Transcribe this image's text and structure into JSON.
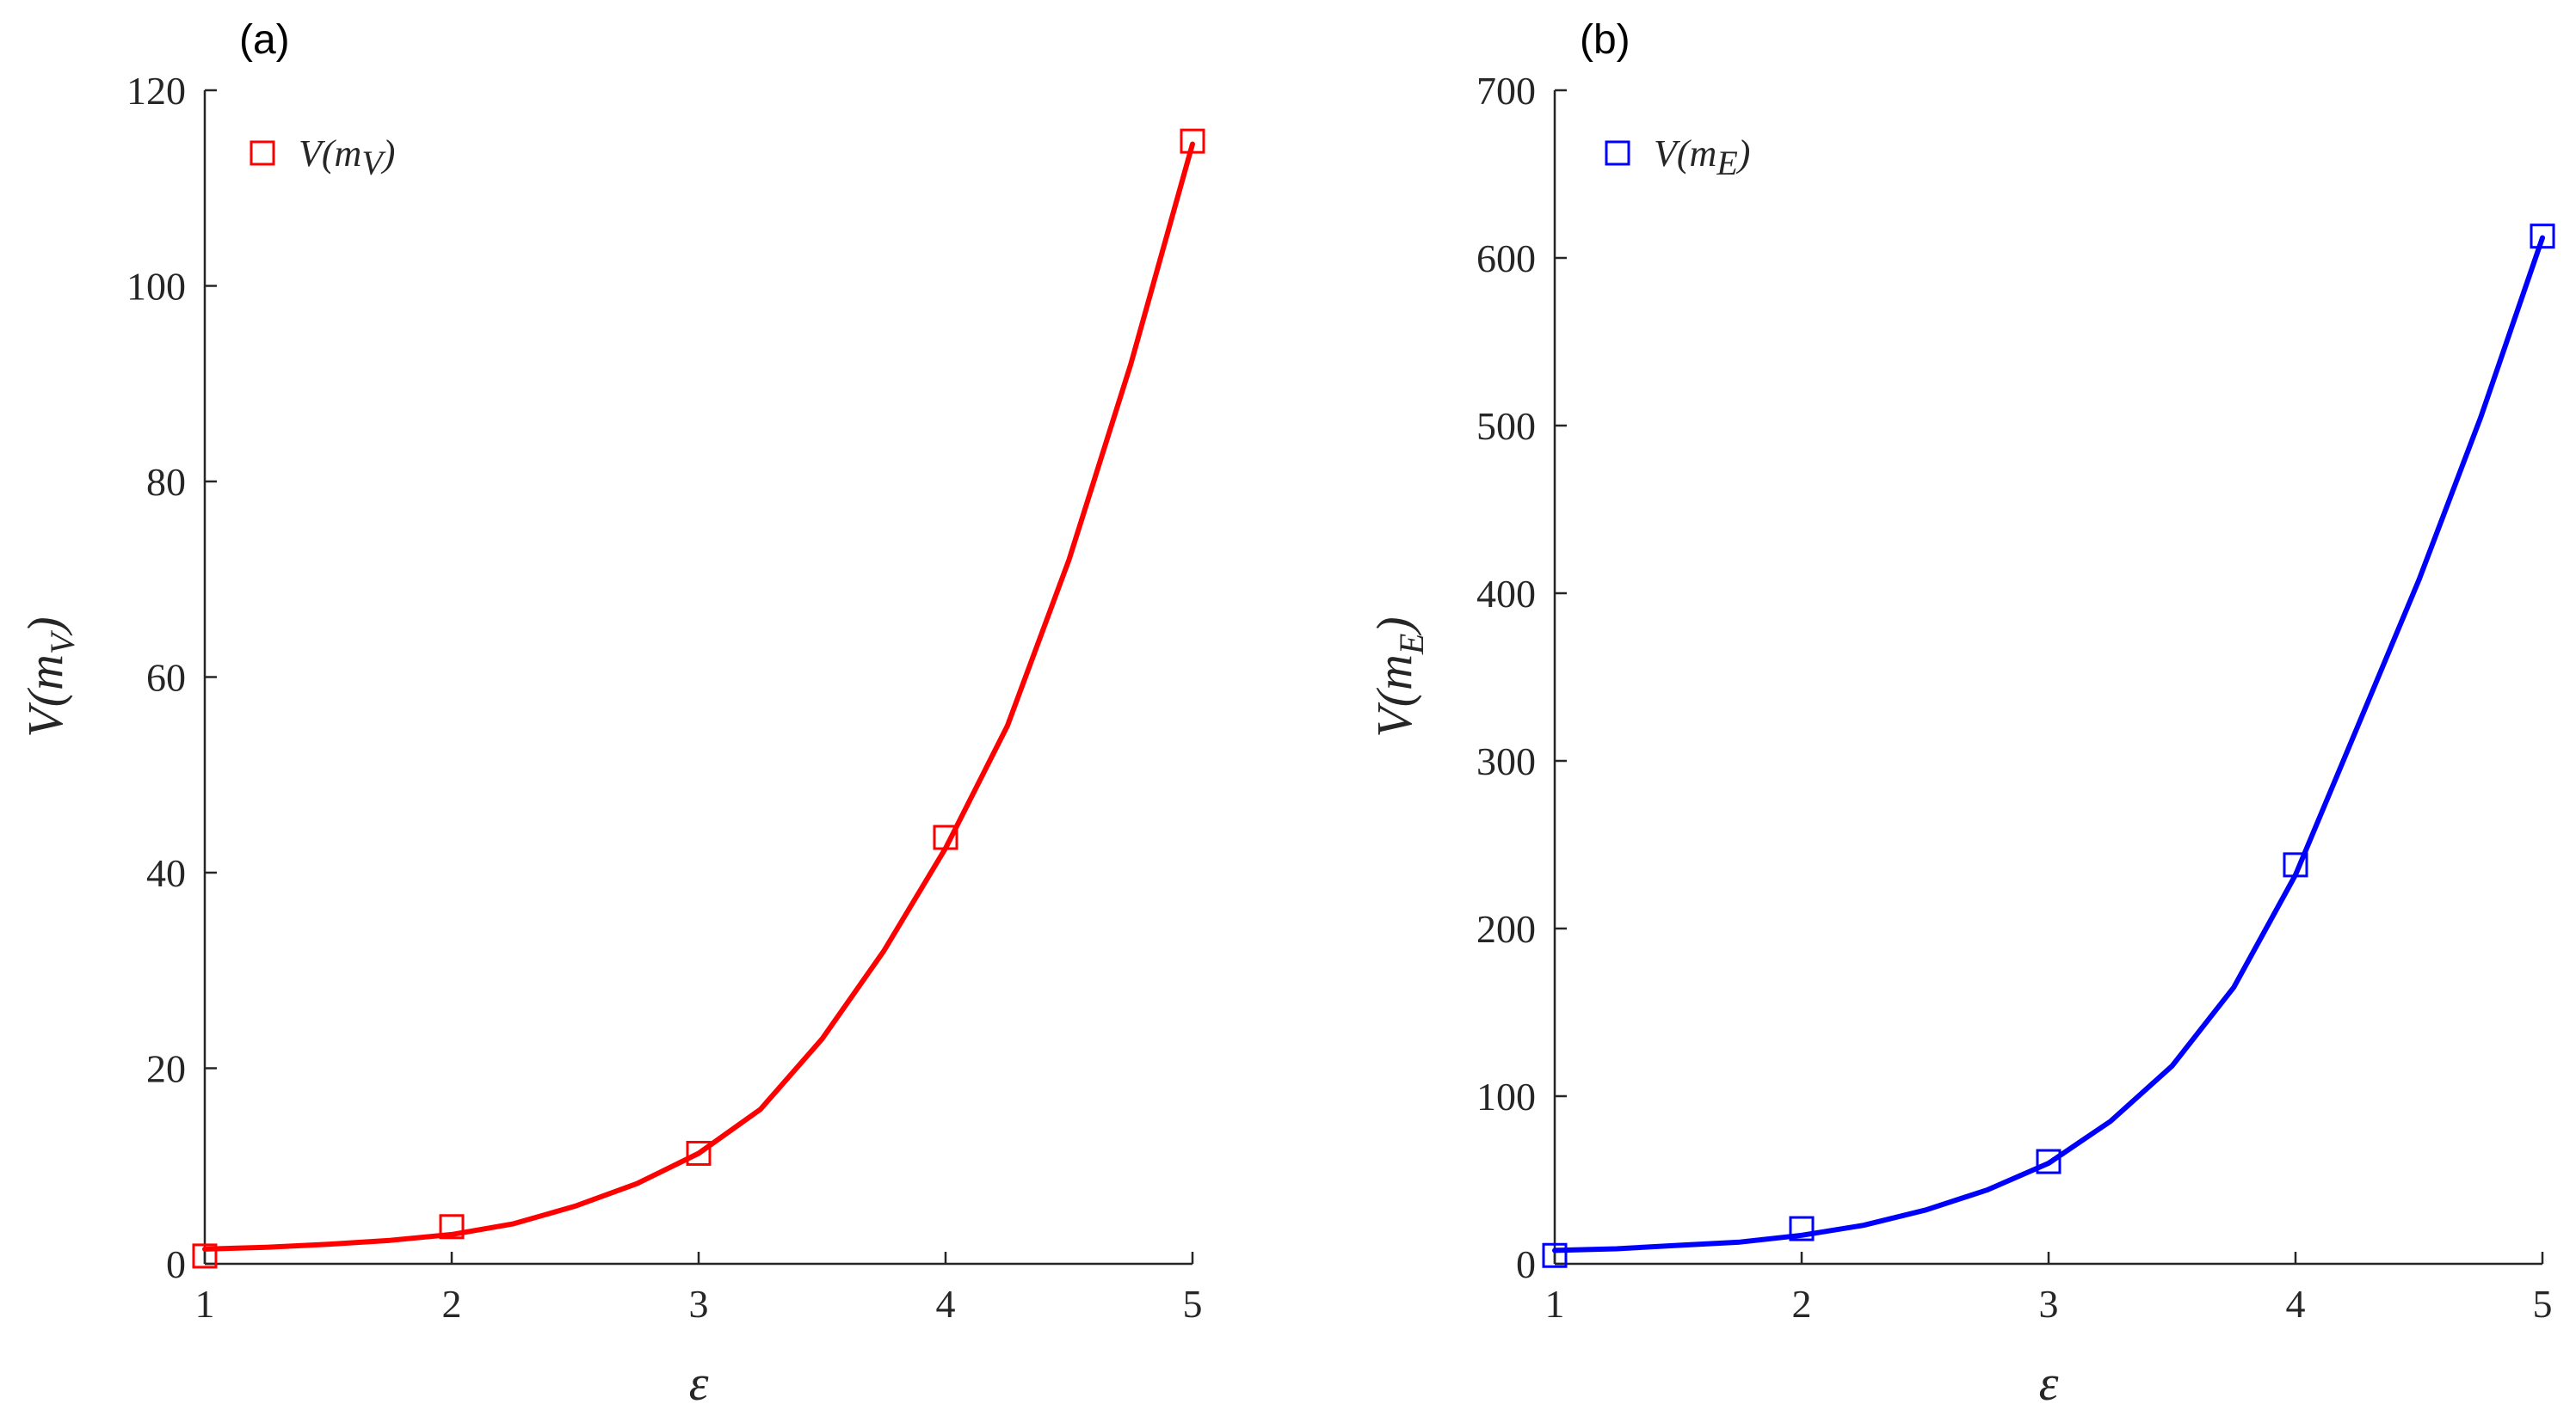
{
  "chart_data": [
    {
      "type": "scatter",
      "panel_label": "(a)",
      "xlabel": "ε",
      "ylabel": {
        "main": "V(m",
        "sub": "V",
        "close": ")"
      },
      "legend": {
        "main": "V(m",
        "sub": "V",
        "close": ")",
        "position": "top-left"
      },
      "xlim": [
        1,
        5
      ],
      "ylim": [
        0,
        120
      ],
      "xticks": [
        1,
        2,
        3,
        4,
        5
      ],
      "yticks": [
        0,
        20,
        40,
        60,
        80,
        100,
        120
      ],
      "color": "#ff0000",
      "points": {
        "x": [
          1,
          2,
          3,
          4,
          5
        ],
        "y": [
          0.8,
          3.8,
          11.3,
          43.6,
          114.8
        ]
      },
      "fit_curve": {
        "description_shown": "smooth fitted line",
        "x": [
          1.0,
          1.25,
          1.5,
          1.75,
          2.0,
          2.25,
          2.5,
          2.75,
          3.0,
          3.25,
          3.5,
          3.75,
          4.0,
          4.25,
          4.5,
          4.75,
          5.0
        ],
        "y": [
          1.5,
          1.7,
          2.0,
          2.4,
          3.0,
          4.1,
          5.9,
          8.2,
          11.3,
          15.8,
          23.0,
          32.0,
          42.5,
          55.0,
          72.0,
          92.0,
          114.5
        ]
      },
      "grid": false
    },
    {
      "type": "scatter",
      "panel_label": "(b)",
      "xlabel": "ε",
      "ylabel": {
        "main": "V(m",
        "sub": "E",
        "close": ")"
      },
      "legend": {
        "main": "V(m",
        "sub": "E",
        "close": ")",
        "position": "top-left"
      },
      "xlim": [
        1,
        5
      ],
      "ylim": [
        0,
        700
      ],
      "xticks": [
        1,
        2,
        3,
        4,
        5
      ],
      "yticks": [
        0,
        100,
        200,
        300,
        400,
        500,
        600,
        700
      ],
      "color": "#0000ff",
      "points": {
        "x": [
          1,
          2,
          3,
          4,
          5
        ],
        "y": [
          5,
          21,
          61,
          238,
          613
        ]
      },
      "fit_curve": {
        "description_shown": "smooth fitted line",
        "x": [
          1.0,
          1.25,
          1.5,
          1.75,
          2.0,
          2.25,
          2.5,
          2.75,
          3.0,
          3.25,
          3.5,
          3.75,
          4.0,
          4.25,
          4.5,
          4.75,
          5.0
        ],
        "y": [
          8,
          9,
          11,
          13,
          17,
          23,
          32,
          44,
          60,
          85,
          118,
          165,
          232,
          320,
          408,
          505,
          612
        ]
      },
      "grid": false
    }
  ]
}
